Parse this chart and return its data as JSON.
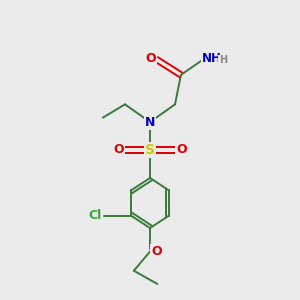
{
  "background_color": "#ebebeb",
  "figsize": [
    3.0,
    3.0
  ],
  "dpi": 100,
  "bond_color": "#3a7a3a",
  "colors": {
    "O": "#dd0000",
    "N": "#0000cc",
    "S": "#cccc00",
    "Cl": "#33aa33",
    "NH_gray": "#888888"
  }
}
